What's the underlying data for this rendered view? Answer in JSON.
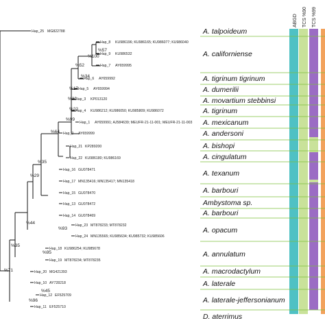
{
  "haplotypes": [
    {
      "id": "hap25",
      "label": "Hap_25",
      "acc": "MG822788"
    },
    {
      "id": "hap8",
      "label": "Hap_8",
      "acc": "KU986196; KU986165; KU986077; KU986040"
    },
    {
      "id": "hap9",
      "label": "Hap_9",
      "acc": "KU986532"
    },
    {
      "id": "hap7",
      "label": "Hap_7",
      "acc": "AY659995"
    },
    {
      "id": "hap6",
      "label": "Hap_6",
      "acc": "AY659992"
    },
    {
      "id": "hap5",
      "label": "Hap_5",
      "acc": "AY659994"
    },
    {
      "id": "hap3",
      "label": "Hap_3",
      "acc": "KP013120"
    },
    {
      "id": "hap4",
      "label": "Hap_4",
      "acc": "KU986212; KU986050; KU985809; KU986072"
    },
    {
      "id": "hap1",
      "label": "Hap_1",
      "acc": "AY659991; AJ584639; MEUFR-21-11-001; MEUFR-21-11-003"
    },
    {
      "id": "hap2",
      "label": "Hap_2",
      "acc": "AY659999"
    },
    {
      "id": "hap21",
      "label": "Hap_21",
      "acc": "KP289200"
    },
    {
      "id": "hap22",
      "label": "Hap_22",
      "acc": "KU986180; KU986169"
    },
    {
      "id": "hap16",
      "label": "Hap_16",
      "acc": "GU078471"
    },
    {
      "id": "hap17",
      "label": "Hap_17",
      "acc": "MN135416; MN135417; MN135418"
    },
    {
      "id": "hap15",
      "label": "Hap_15",
      "acc": "GU078470"
    },
    {
      "id": "hap13",
      "label": "Hap_13",
      "acc": "GU078472"
    },
    {
      "id": "hap14",
      "label": "Hap_14",
      "acc": "GU078469"
    },
    {
      "id": "hap23",
      "label": "Hap_23",
      "acc": "MT878233; MT878232"
    },
    {
      "id": "hap24",
      "label": "Hap_24",
      "acc": "MN135565; KU985634; KU985732; KU985606"
    },
    {
      "id": "hap18",
      "label": "Hap_18",
      "acc": "KU986254; KU985678"
    },
    {
      "id": "hap19",
      "label": "Hap_19",
      "acc": "MT878234; MT878235"
    },
    {
      "id": "hap20",
      "label": "Hap_20",
      "acc": "MG421393"
    },
    {
      "id": "hap10",
      "label": "Hap_10",
      "acc": "AY728218"
    },
    {
      "id": "hap12",
      "label": "Hap_12",
      "acc": "EF525709"
    },
    {
      "id": "hap11",
      "label": "Hap_11",
      "acc": "EF525710"
    }
  ],
  "bootstrap": [
    "%57",
    "%100",
    "%52",
    "%34",
    "%17",
    "%32",
    "%22",
    "%99",
    "%64",
    "%35",
    "%29",
    "%93",
    "%44",
    "%95",
    "%35",
    "%71",
    "%45",
    "%96"
  ],
  "species": [
    "A. talpoideum",
    "A. californiense",
    "A. tigrinum tigrinum",
    "A. dumerilii",
    "A. movartium stebbinsi",
    "A. tigrinum",
    "A. mexicanum",
    "A. andersoni",
    "A. bishopi",
    "A. cingulatum",
    "A. texanum",
    "A. barbouri",
    "Ambystoma sp.",
    "A. barbouri",
    "A. opacum",
    "A. annulatum",
    "A. macrodactylum",
    "A. laterale",
    "A. laterale-jeffersonianum",
    "D. aterrimus"
  ],
  "columns": [
    "ABGD",
    "TCS %90",
    "TCS %99"
  ],
  "colors": {
    "abgd": "#4fc1c4",
    "tcs90": "#c9e29a",
    "tcs99": "#9b6cc4",
    "orange": "#f2a25c",
    "separator": "#7bbf3a"
  }
}
